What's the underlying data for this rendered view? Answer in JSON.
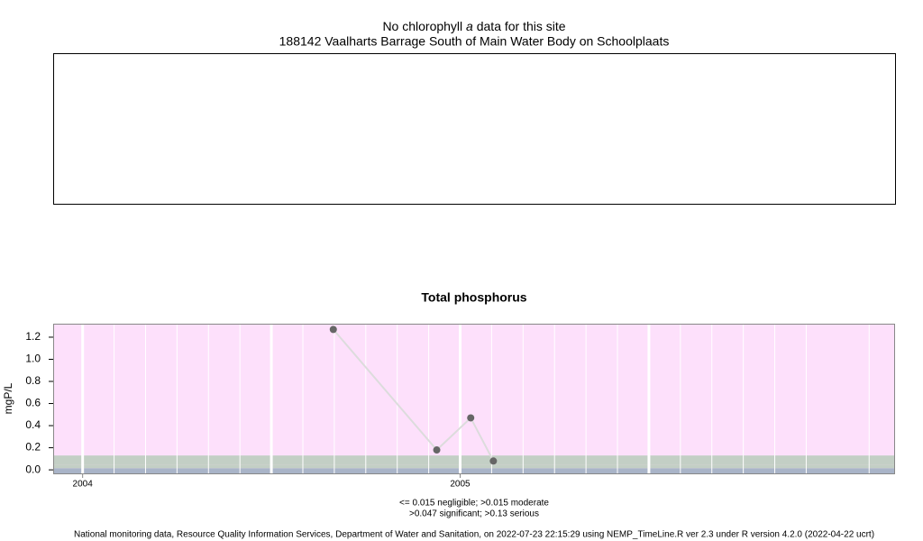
{
  "chart_data": [
    {
      "type": "empty",
      "title": [
        "No chlorophyll",
        "a",
        "data for this site"
      ],
      "subtitle": "188142 Vaalharts Barrage South of Main Water Body on Schoolplaats"
    },
    {
      "type": "line",
      "title": "Total phosphorus",
      "y_label": "mgP/L",
      "x": [
        2004.664,
        2004.938,
        2005.028,
        2005.088
      ],
      "series": [
        {
          "color": "#666666",
          "line_color": "#dcdcdc",
          "values": [
            1.27,
            0.18,
            0.47,
            0.08
          ]
        }
      ],
      "xlim": [
        2003.922,
        2006.152
      ],
      "xticks": [
        2004,
        2005
      ],
      "ylim": [
        -0.04,
        1.322
      ],
      "yticks": [
        {
          "value": 0,
          "label": "0.0"
        },
        0.2,
        0.4,
        0.6,
        0.8,
        {
          "value": 1,
          "label": "1.0"
        },
        1.2
      ],
      "background": "#fde0fb",
      "bands": [
        {
          "to": 0.015,
          "color": "#a9b4c8"
        },
        {
          "from": 0.015,
          "to": 0.047,
          "color": "#c3cfc5"
        },
        {
          "from": 0.047,
          "to": 0.13,
          "color": "#c3cfc5"
        }
      ],
      "grid": true,
      "notes": [
        "<= 0.015 negligible; >0.015 moderate",
        ">0.047 significant; >0.13 serious"
      ]
    }
  ],
  "footer": "National monitoring data, Resource Quality Information Services, Department of Water and Sanitation, on 2022-07-23 22:15:29 using NEMP_TimeLine.R ver 2.3 under R version 4.2.0 (2022-04-22 ucrt)"
}
